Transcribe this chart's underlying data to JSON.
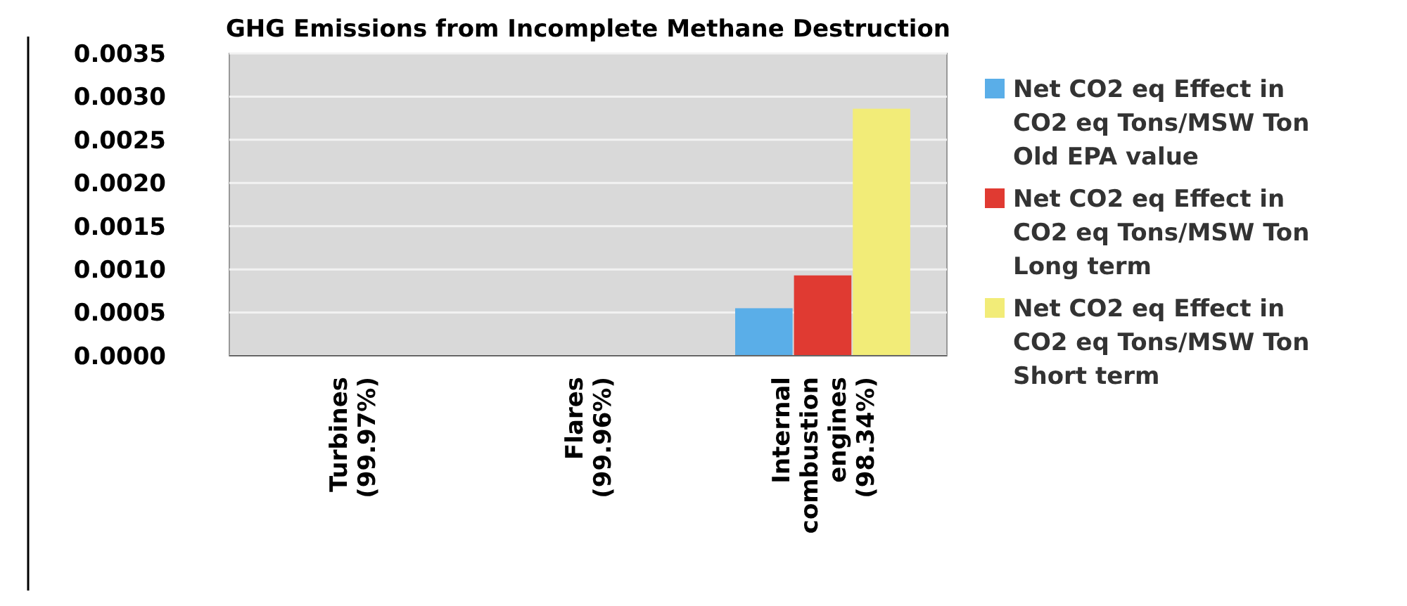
{
  "chart_data": {
    "type": "bar",
    "title": "GHG Emissions from Incomplete Methane Destruction",
    "categories": [
      "Turbines\n(99.97%)",
      "Flares\n(99.96%)",
      "Internal\ncombustion\nengines\n(98.34%)"
    ],
    "series": [
      {
        "name": "Net CO2 eq Effect in CO2 eq Tons/MSW Ton Old EPA value",
        "color": "#5aaee8",
        "values": [
          0,
          0,
          0.00055
        ]
      },
      {
        "name": "Net CO2 eq Effect in CO2 eq Tons/MSW Ton Long term",
        "color": "#e03a32",
        "values": [
          0,
          0,
          0.00093
        ]
      },
      {
        "name": "Net CO2 eq Effect in CO2 eq Tons/MSW Ton Short term",
        "color": "#f2ec78",
        "values": [
          0,
          0,
          0.00286
        ]
      }
    ],
    "ylim": [
      0,
      0.0035
    ],
    "yticks": [
      {
        "value": 0,
        "label": "0.0000"
      },
      {
        "value": 0.0005,
        "label": "0.0005"
      },
      {
        "value": 0.001,
        "label": "0.0010"
      },
      {
        "value": 0.0015,
        "label": "0.0015"
      },
      {
        "value": 0.002,
        "label": "0.0020"
      },
      {
        "value": 0.0025,
        "label": "0.0025"
      },
      {
        "value": 0.003,
        "label": "0.0030"
      },
      {
        "value": 0.0035,
        "label": "0.0035"
      }
    ],
    "grid": "y",
    "legend": "right"
  }
}
